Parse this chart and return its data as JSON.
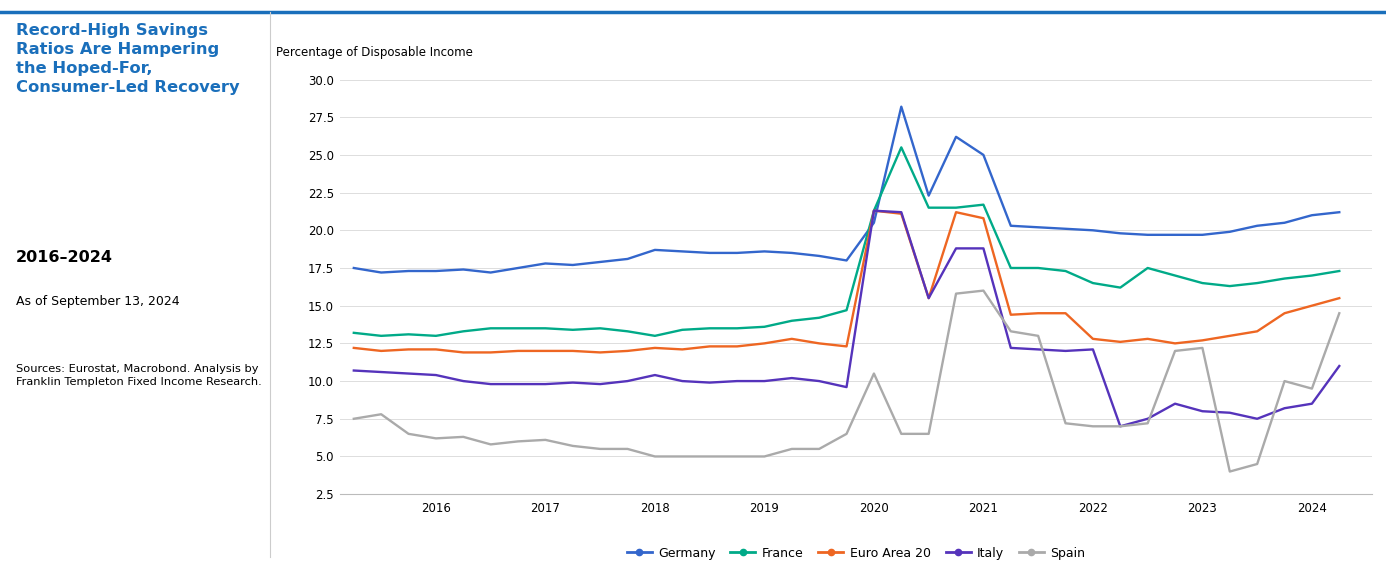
{
  "title_line1": "Record-High Savings",
  "title_line2": "Ratios Are Hampering",
  "title_line3": "the Hoped-For,",
  "title_line4": "Consumer-Led Recovery",
  "subtitle": "2016–2024",
  "date_note": "As of September 13, 2024",
  "sources": "Sources: Eurostat, Macrobond. Analysis by\nFranklin Templeton Fixed Income Research.",
  "ylabel": "Percentage of Disposable Income",
  "ylim": [
    2.5,
    30.0
  ],
  "yticks": [
    2.5,
    5.0,
    7.5,
    10.0,
    12.5,
    15.0,
    17.5,
    20.0,
    22.5,
    25.0,
    27.5,
    30.0
  ],
  "title_color": "#1a6fbb",
  "background_color": "#ffffff",
  "top_border_color": "#1a6fbb",
  "series": {
    "Germany": {
      "color": "#3366cc",
      "data_x": [
        2015.25,
        2015.5,
        2015.75,
        2016.0,
        2016.25,
        2016.5,
        2016.75,
        2017.0,
        2017.25,
        2017.5,
        2017.75,
        2018.0,
        2018.25,
        2018.5,
        2018.75,
        2019.0,
        2019.25,
        2019.5,
        2019.75,
        2020.0,
        2020.25,
        2020.5,
        2020.75,
        2021.0,
        2021.25,
        2021.5,
        2021.75,
        2022.0,
        2022.25,
        2022.5,
        2022.75,
        2023.0,
        2023.25,
        2023.5,
        2023.75,
        2024.0,
        2024.25
      ],
      "data_y": [
        17.5,
        17.2,
        17.3,
        17.3,
        17.4,
        17.2,
        17.5,
        17.8,
        17.7,
        17.9,
        18.1,
        18.7,
        18.6,
        18.5,
        18.5,
        18.6,
        18.5,
        18.3,
        18.0,
        20.5,
        28.2,
        22.3,
        26.2,
        25.0,
        20.3,
        20.2,
        20.1,
        20.0,
        19.8,
        19.7,
        19.7,
        19.7,
        19.9,
        20.3,
        20.5,
        21.0,
        21.2
      ]
    },
    "France": {
      "color": "#00aa88",
      "data_x": [
        2015.25,
        2015.5,
        2015.75,
        2016.0,
        2016.25,
        2016.5,
        2016.75,
        2017.0,
        2017.25,
        2017.5,
        2017.75,
        2018.0,
        2018.25,
        2018.5,
        2018.75,
        2019.0,
        2019.25,
        2019.5,
        2019.75,
        2020.0,
        2020.25,
        2020.5,
        2020.75,
        2021.0,
        2021.25,
        2021.5,
        2021.75,
        2022.0,
        2022.25,
        2022.5,
        2022.75,
        2023.0,
        2023.25,
        2023.5,
        2023.75,
        2024.0,
        2024.25
      ],
      "data_y": [
        13.2,
        13.0,
        13.1,
        13.0,
        13.3,
        13.5,
        13.5,
        13.5,
        13.4,
        13.5,
        13.3,
        13.0,
        13.4,
        13.5,
        13.5,
        13.6,
        14.0,
        14.2,
        14.7,
        21.3,
        25.5,
        21.5,
        21.5,
        21.7,
        17.5,
        17.5,
        17.3,
        16.5,
        16.2,
        17.5,
        17.0,
        16.5,
        16.3,
        16.5,
        16.8,
        17.0,
        17.3
      ]
    },
    "Euro Area 20": {
      "color": "#ee6622",
      "data_x": [
        2015.25,
        2015.5,
        2015.75,
        2016.0,
        2016.25,
        2016.5,
        2016.75,
        2017.0,
        2017.25,
        2017.5,
        2017.75,
        2018.0,
        2018.25,
        2018.5,
        2018.75,
        2019.0,
        2019.25,
        2019.5,
        2019.75,
        2020.0,
        2020.25,
        2020.5,
        2020.75,
        2021.0,
        2021.25,
        2021.5,
        2021.75,
        2022.0,
        2022.25,
        2022.5,
        2022.75,
        2023.0,
        2023.25,
        2023.5,
        2023.75,
        2024.0,
        2024.25
      ],
      "data_y": [
        12.2,
        12.0,
        12.1,
        12.1,
        11.9,
        11.9,
        12.0,
        12.0,
        12.0,
        11.9,
        12.0,
        12.2,
        12.1,
        12.3,
        12.3,
        12.5,
        12.8,
        12.5,
        12.3,
        21.3,
        21.1,
        15.5,
        21.2,
        20.8,
        14.4,
        14.5,
        14.5,
        12.8,
        12.6,
        12.8,
        12.5,
        12.7,
        13.0,
        13.3,
        14.5,
        15.0,
        15.5
      ]
    },
    "Italy": {
      "color": "#5533bb",
      "data_x": [
        2015.25,
        2015.5,
        2015.75,
        2016.0,
        2016.25,
        2016.5,
        2016.75,
        2017.0,
        2017.25,
        2017.5,
        2017.75,
        2018.0,
        2018.25,
        2018.5,
        2018.75,
        2019.0,
        2019.25,
        2019.5,
        2019.75,
        2020.0,
        2020.25,
        2020.5,
        2020.75,
        2021.0,
        2021.25,
        2021.5,
        2021.75,
        2022.0,
        2022.25,
        2022.5,
        2022.75,
        2023.0,
        2023.25,
        2023.5,
        2023.75,
        2024.0,
        2024.25
      ],
      "data_y": [
        10.7,
        10.6,
        10.5,
        10.4,
        10.0,
        9.8,
        9.8,
        9.8,
        9.9,
        9.8,
        10.0,
        10.4,
        10.0,
        9.9,
        10.0,
        10.0,
        10.2,
        10.0,
        9.6,
        21.3,
        21.2,
        15.5,
        18.8,
        18.8,
        12.2,
        12.1,
        12.0,
        12.1,
        7.0,
        7.5,
        8.5,
        8.0,
        7.9,
        7.5,
        8.2,
        8.5,
        11.0
      ]
    },
    "Spain": {
      "color": "#aaaaaa",
      "data_x": [
        2015.25,
        2015.5,
        2015.75,
        2016.0,
        2016.25,
        2016.5,
        2016.75,
        2017.0,
        2017.25,
        2017.5,
        2017.75,
        2018.0,
        2018.25,
        2018.5,
        2018.75,
        2019.0,
        2019.25,
        2019.5,
        2019.75,
        2020.0,
        2020.25,
        2020.5,
        2020.75,
        2021.0,
        2021.25,
        2021.5,
        2021.75,
        2022.0,
        2022.25,
        2022.5,
        2022.75,
        2023.0,
        2023.25,
        2023.5,
        2023.75,
        2024.0,
        2024.25
      ],
      "data_y": [
        7.5,
        7.8,
        6.5,
        6.2,
        6.3,
        5.8,
        6.0,
        6.1,
        5.7,
        5.5,
        5.5,
        5.0,
        5.0,
        5.0,
        5.0,
        5.0,
        5.5,
        5.5,
        6.5,
        10.5,
        6.5,
        6.5,
        15.8,
        16.0,
        13.3,
        13.0,
        7.2,
        7.0,
        7.0,
        7.2,
        12.0,
        12.2,
        4.0,
        4.5,
        10.0,
        9.5,
        14.5
      ]
    }
  }
}
